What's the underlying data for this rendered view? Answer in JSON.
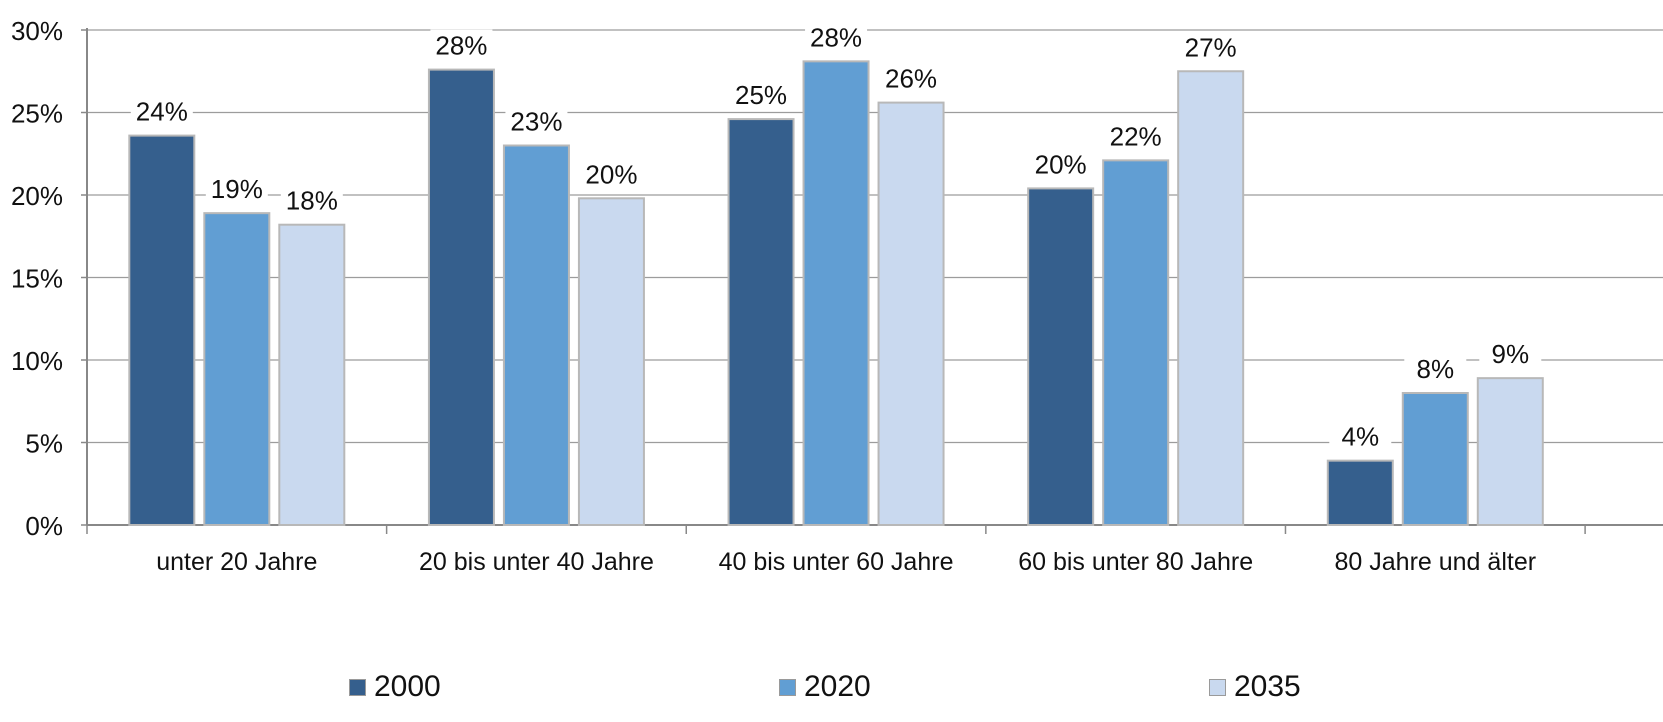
{
  "chart_data": {
    "type": "bar",
    "categories": [
      "unter 20 Jahre",
      "20 bis unter 40 Jahre",
      "40 bis unter 60 Jahre",
      "60 bis unter 80 Jahre",
      "80 Jahre und älter"
    ],
    "series": [
      {
        "name": "2000",
        "color": "#355f8d",
        "values": [
          23.6,
          27.6,
          24.6,
          20.4,
          3.9
        ],
        "labels": [
          "24%",
          "28%",
          "25%",
          "20%",
          "4%"
        ]
      },
      {
        "name": "2020",
        "color": "#619ed3",
        "values": [
          18.9,
          23.0,
          28.1,
          22.1,
          8.0
        ],
        "labels": [
          "19%",
          "23%",
          "28%",
          "22%",
          "8%"
        ]
      },
      {
        "name": "2035",
        "color": "#c9d9ef",
        "values": [
          18.2,
          19.8,
          25.6,
          27.5,
          8.9
        ],
        "labels": [
          "18%",
          "20%",
          "26%",
          "27%",
          "9%"
        ]
      }
    ],
    "ylim": [
      0,
      30
    ],
    "yticks": [
      "0%",
      "5%",
      "10%",
      "15%",
      "20%",
      "25%",
      "30%"
    ],
    "grid": true,
    "legend_position": "bottom",
    "title": "",
    "xlabel": "",
    "ylabel": ""
  }
}
